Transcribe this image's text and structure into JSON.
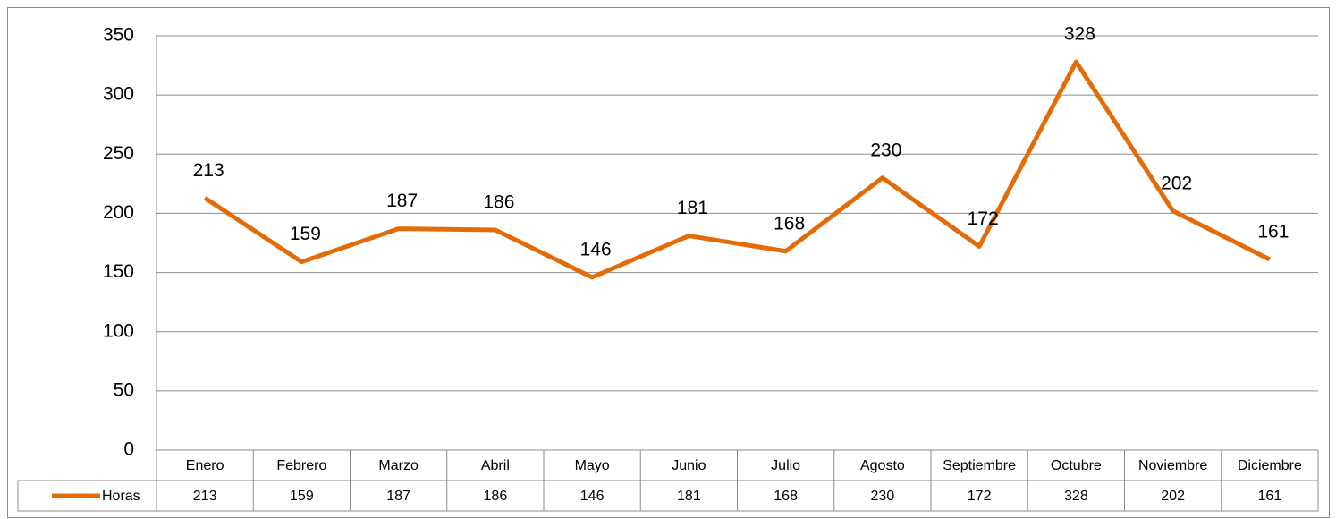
{
  "chart_data": {
    "type": "line",
    "categories": [
      "Enero",
      "Febrero",
      "Marzo",
      "Abril",
      "Mayo",
      "Junio",
      "Julio",
      "Agosto",
      "Septiembre",
      "Octubre",
      "Noviembre",
      "Diciembre"
    ],
    "series": [
      {
        "name": "Horas",
        "color": "#e36c09",
        "values": [
          213,
          159,
          187,
          186,
          146,
          181,
          168,
          230,
          172,
          328,
          202,
          161
        ]
      }
    ],
    "ylim": [
      0,
      350
    ],
    "yticks": [
      0,
      50,
      100,
      150,
      200,
      250,
      300,
      350
    ],
    "grid": true,
    "data_table": true
  }
}
